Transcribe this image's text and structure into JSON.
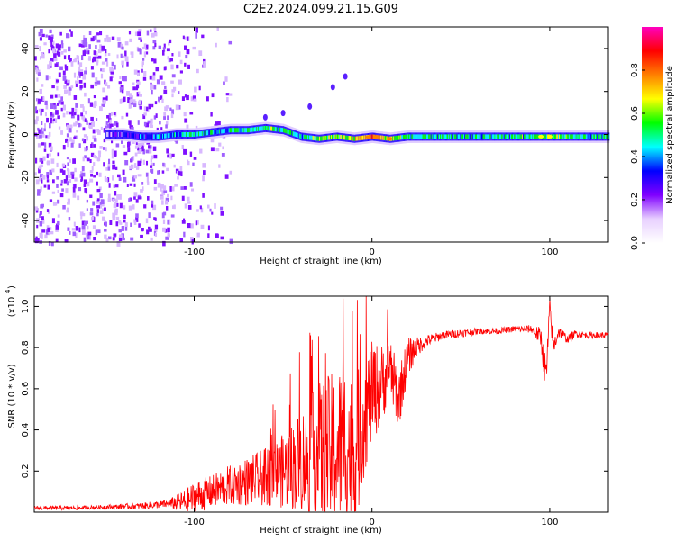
{
  "title": "C2E2.2024.099.21.15.G09",
  "chart_data": [
    {
      "type": "heatmap",
      "title": "C2E2.2024.099.21.15.G09",
      "xlabel": "Height of straight line (km)",
      "ylabel": "Frequency (Hz)",
      "xlim": [
        -190,
        133
      ],
      "ylim": [
        -50,
        50
      ],
      "x_ticks": [
        -100,
        0,
        100
      ],
      "x_tick_labels": [
        "-100",
        "0",
        "100"
      ],
      "y_ticks": [
        -40,
        -20,
        0,
        20,
        40
      ],
      "y_tick_labels": [
        "-40",
        "-20",
        "0",
        "20",
        "40"
      ],
      "colorbar": {
        "label": "Normalized spectral amplitude",
        "range": [
          0,
          1
        ],
        "ticks": [
          0.0,
          0.2,
          0.4,
          0.6,
          0.8
        ],
        "tick_labels": [
          "0.0",
          "0.2",
          "0.4",
          "0.6",
          "0.8"
        ],
        "colors": [
          "#ffffff",
          "#e8d0ff",
          "#7f00ff",
          "#0000ff",
          "#00ffff",
          "#00ff00",
          "#ffff00",
          "#ff8000",
          "#ff0000",
          "#ff00c0"
        ]
      },
      "noise_region_km": [
        -190,
        -100
      ],
      "ridge": {
        "x": [
          -150,
          -140,
          -130,
          -120,
          -110,
          -100,
          -90,
          -80,
          -70,
          -60,
          -50,
          -40,
          -30,
          -20,
          -10,
          0,
          10,
          20,
          40,
          60,
          80,
          100,
          120,
          133
        ],
        "y": [
          0,
          0,
          -1,
          -1,
          0,
          0,
          1,
          2,
          2,
          3,
          2,
          -1,
          -2,
          -1,
          -2,
          -1,
          -2,
          -1,
          -1,
          -1,
          -1,
          -1,
          -1,
          -1
        ],
        "amplitude": [
          0.22,
          0.3,
          0.38,
          0.45,
          0.5,
          0.55,
          0.5,
          0.52,
          0.55,
          0.58,
          0.55,
          0.5,
          0.6,
          0.65,
          0.7,
          0.85,
          0.7,
          0.55,
          0.52,
          0.52,
          0.55,
          0.6,
          0.55,
          0.5
        ]
      },
      "spots": [
        {
          "x": -60,
          "y": 8
        },
        {
          "x": -50,
          "y": 10
        },
        {
          "x": -35,
          "y": 13
        },
        {
          "x": -22,
          "y": 22
        },
        {
          "x": -15,
          "y": 27
        }
      ]
    },
    {
      "type": "line",
      "xlabel": "Height of straight line (km)",
      "ylabel": "SNR (10 * v/v)",
      "y_scale_label": "(x10",
      "y_scale_exponent": "4",
      "color": "#ff0000",
      "xlim": [
        -190,
        133
      ],
      "ylim": [
        0,
        1.05
      ],
      "x_ticks": [
        -100,
        0,
        100
      ],
      "x_tick_labels": [
        "-100",
        "0",
        "100"
      ],
      "y_ticks": [
        0.2,
        0.4,
        0.6,
        0.8,
        1.0
      ],
      "y_tick_labels": [
        "0.2",
        "0.4",
        "0.6",
        "0.8",
        "1.0"
      ],
      "x": [
        -190,
        -170,
        -150,
        -130,
        -115,
        -105,
        -100,
        -90,
        -80,
        -70,
        -60,
        -50,
        -40,
        -30,
        -20,
        -15,
        -10,
        -5,
        0,
        5,
        10,
        15,
        20,
        25,
        30,
        40,
        50,
        60,
        70,
        80,
        90,
        95,
        98,
        100,
        102,
        105,
        110,
        115,
        120,
        133
      ],
      "y": [
        0.02,
        0.02,
        0.025,
        0.03,
        0.04,
        0.05,
        0.07,
        0.1,
        0.13,
        0.15,
        0.17,
        0.2,
        0.25,
        0.28,
        0.3,
        0.35,
        0.25,
        0.45,
        0.58,
        0.62,
        0.7,
        0.55,
        0.75,
        0.8,
        0.83,
        0.86,
        0.87,
        0.88,
        0.88,
        0.89,
        0.89,
        0.85,
        0.65,
        1.0,
        0.8,
        0.88,
        0.84,
        0.87,
        0.86,
        0.86
      ],
      "noise_amplitude": [
        0.01,
        0.01,
        0.01,
        0.015,
        0.02,
        0.06,
        0.08,
        0.08,
        0.1,
        0.12,
        0.14,
        0.18,
        0.25,
        0.35,
        0.4,
        0.4,
        0.4,
        0.3,
        0.25,
        0.2,
        0.15,
        0.15,
        0.1,
        0.05,
        0.03,
        0.02,
        0.02,
        0.015,
        0.015,
        0.015,
        0.02,
        0.05,
        0.1,
        0.05,
        0.05,
        0.03,
        0.02,
        0.02,
        0.015,
        0.015
      ]
    }
  ]
}
